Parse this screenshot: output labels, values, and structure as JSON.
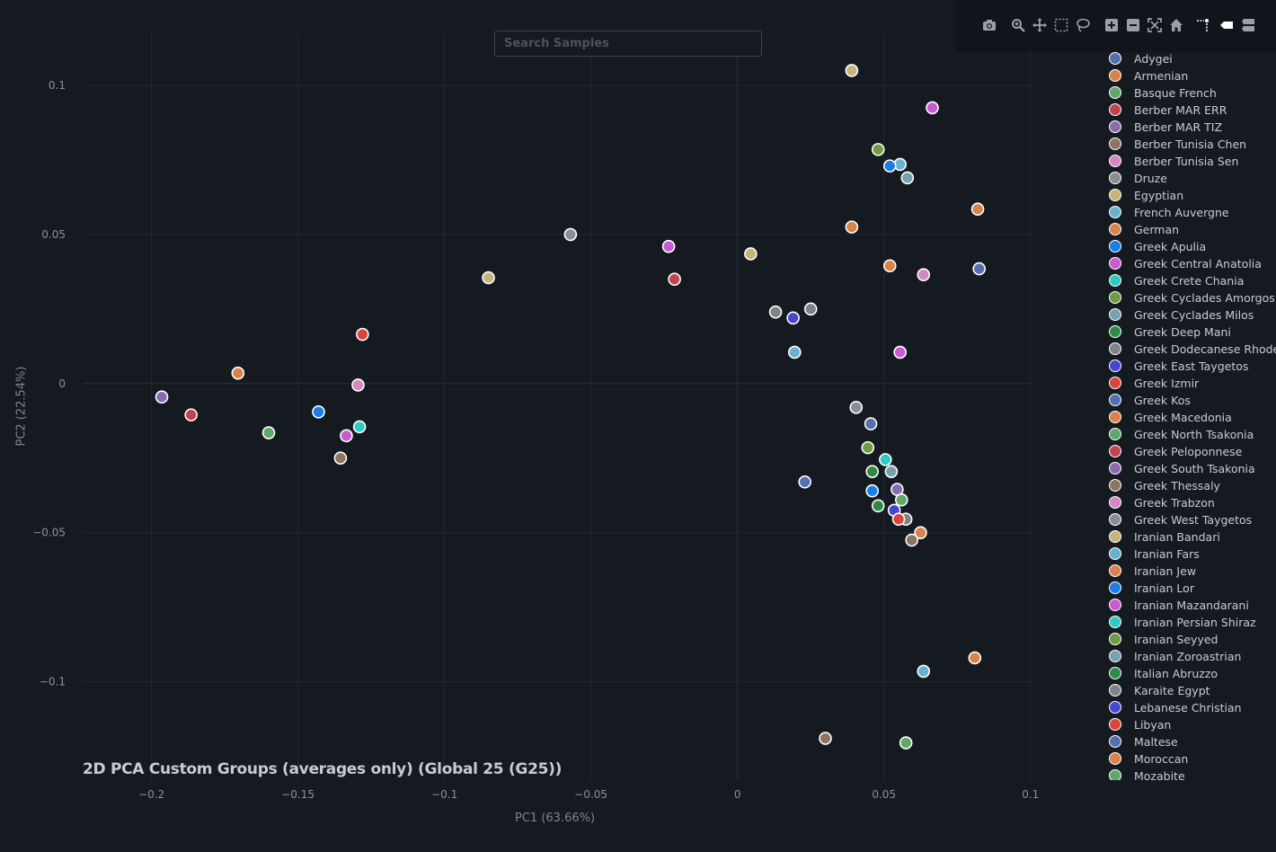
{
  "search": {
    "placeholder": "Search Samples"
  },
  "toolbar": {
    "buttons": [
      {
        "name": "camera-icon"
      },
      {
        "name": "zoom-icon"
      },
      {
        "name": "pan-icon"
      },
      {
        "name": "box-select-icon"
      },
      {
        "name": "lasso-select-icon"
      },
      {
        "name": "zoom-in-icon"
      },
      {
        "name": "zoom-out-icon"
      },
      {
        "name": "autoscale-icon"
      },
      {
        "name": "home-icon"
      },
      {
        "name": "spike-lines-icon"
      },
      {
        "name": "hover-closest-icon"
      },
      {
        "name": "hover-compare-icon"
      }
    ]
  },
  "chart_data": {
    "type": "scatter",
    "title": "2D PCA Custom Groups (averages only) (Global 25 (G25))",
    "xlabel": "PC1 (63.66%)",
    "ylabel": "PC2 (22.54%)",
    "xlim": [
      -0.2235,
      0.101
    ],
    "ylim": [
      -0.133,
      0.1175
    ],
    "xticks": [
      {
        "v": -0.2,
        "label": "−0.2"
      },
      {
        "v": -0.15,
        "label": "−0.15"
      },
      {
        "v": -0.1,
        "label": "−0.1"
      },
      {
        "v": -0.05,
        "label": "−0.05"
      },
      {
        "v": 0,
        "label": "0"
      },
      {
        "v": 0.05,
        "label": "0.05"
      },
      {
        "v": 0.1,
        "label": "0.1"
      }
    ],
    "yticks": [
      {
        "v": 0.1,
        "label": "0.1"
      },
      {
        "v": 0.05,
        "label": "0.05"
      },
      {
        "v": 0,
        "label": "0"
      },
      {
        "v": -0.05,
        "label": "−0.05"
      },
      {
        "v": -0.1,
        "label": "−0.1"
      }
    ],
    "grid": true,
    "legend_position": "right",
    "series": [
      {
        "name": "Adygei",
        "color": "#5470b0",
        "points": [
          [
            0.0825,
            0.0385
          ]
        ]
      },
      {
        "name": "Armenian",
        "color": "#d8834c",
        "points": [
          [
            0.052,
            0.0395
          ]
        ]
      },
      {
        "name": "Basque French",
        "color": "#5ea86a",
        "points": [
          [
            0.0575,
            -0.1205
          ]
        ]
      },
      {
        "name": "Berber MAR ERR",
        "color": "#c1454f",
        "points": [
          [
            -0.0215,
            0.035
          ]
        ]
      },
      {
        "name": "Berber MAR TIZ",
        "color": "#8a6bb0",
        "points": [
          [
            0.0545,
            -0.0355
          ]
        ]
      },
      {
        "name": "Berber Tunisia Chen",
        "color": "#8c7463",
        "points": [
          [
            0.03,
            -0.119
          ]
        ]
      },
      {
        "name": "Berber Tunisia Sen",
        "color": "#d487c0",
        "points": [
          [
            0.0635,
            0.0365
          ]
        ]
      },
      {
        "name": "Druze",
        "color": "#8a8e94",
        "points": [
          [
            0.0405,
            -0.008
          ]
        ]
      },
      {
        "name": "Egyptian",
        "color": "#c6b47a",
        "points": [
          [
            0.0045,
            0.0435
          ]
        ]
      },
      {
        "name": "French Auvergne",
        "color": "#66b2cf",
        "points": [
          [
            0.0635,
            -0.0965
          ]
        ]
      },
      {
        "name": "German",
        "color": "#d8834c",
        "points": [
          [
            0.081,
            -0.092
          ]
        ]
      },
      {
        "name": "Greek Apulia",
        "color": "#1a7ee6",
        "points": [
          [
            0.046,
            -0.036
          ]
        ]
      },
      {
        "name": "Greek Central Anatolia",
        "color": "#c85ad2",
        "points": [
          [
            0.0665,
            0.0925
          ]
        ]
      },
      {
        "name": "Greek Crete Chania",
        "color": "#2fcac2",
        "points": [
          [
            0.0505,
            -0.0255
          ]
        ]
      },
      {
        "name": "Greek Cyclades Amorgos",
        "color": "#6f9b43",
        "points": [
          [
            0.0445,
            -0.0215
          ]
        ]
      },
      {
        "name": "Greek Cyclades Milos",
        "color": "#76a2ab",
        "points": [
          [
            0.0525,
            -0.0295
          ]
        ]
      },
      {
        "name": "Greek Deep Mani",
        "color": "#2f8a45",
        "points": [
          [
            0.046,
            -0.0295
          ]
        ]
      },
      {
        "name": "Greek Dodecanese Rhodes",
        "color": "#7f8286",
        "points": [
          [
            0.025,
            0.025
          ]
        ]
      },
      {
        "name": "Greek East Taygetos",
        "color": "#4646cf",
        "points": [
          [
            0.019,
            0.022
          ]
        ]
      },
      {
        "name": "Greek Izmir",
        "color": "#d9443c",
        "points": [
          [
            -0.128,
            0.0165
          ]
        ]
      },
      {
        "name": "Greek Kos",
        "color": "#5470b0",
        "points": [
          [
            0.0455,
            -0.0135
          ]
        ]
      },
      {
        "name": "Greek Macedonia",
        "color": "#d8834c",
        "points": [
          [
            -0.1705,
            0.0035
          ]
        ]
      },
      {
        "name": "Greek North Tsakonia",
        "color": "#5ea86a",
        "points": [
          [
            -0.16,
            -0.0165
          ]
        ]
      },
      {
        "name": "Greek Peloponnese",
        "color": "#c1454f",
        "points": [
          [
            -0.1865,
            -0.0105
          ]
        ]
      },
      {
        "name": "Greek South Tsakonia",
        "color": "#8a6bb0",
        "points": [
          [
            -0.1965,
            -0.0045
          ]
        ]
      },
      {
        "name": "Greek Thessaly",
        "color": "#8c7463",
        "points": [
          [
            -0.1355,
            -0.025
          ]
        ]
      },
      {
        "name": "Greek Trabzon",
        "color": "#d487c0",
        "points": [
          [
            -0.1295,
            -0.0005
          ]
        ]
      },
      {
        "name": "Greek West Taygetos",
        "color": "#8a8e94",
        "points": [
          [
            -0.057,
            0.05
          ]
        ]
      },
      {
        "name": "Iranian Bandari",
        "color": "#c6b47a",
        "points": [
          [
            -0.085,
            0.0355
          ]
        ]
      },
      {
        "name": "Iranian Fars",
        "color": "#66b2cf",
        "points": [
          [
            0.0195,
            0.0105
          ]
        ]
      },
      {
        "name": "Iranian Jew",
        "color": "#d8834c",
        "points": [
          [
            0.039,
            0.0525
          ]
        ]
      },
      {
        "name": "Iranian Lor",
        "color": "#1a7ee6",
        "points": [
          [
            -0.143,
            -0.0095
          ]
        ]
      },
      {
        "name": "Iranian Mazandarani",
        "color": "#c85ad2",
        "points": [
          [
            -0.1335,
            -0.0175
          ]
        ]
      },
      {
        "name": "Iranian Persian Shiraz",
        "color": "#2fcac2",
        "points": [
          [
            -0.129,
            -0.0145
          ]
        ]
      },
      {
        "name": "Iranian Seyyed",
        "color": "#6f9b43",
        "points": [
          [
            0.048,
            0.0785
          ]
        ]
      },
      {
        "name": "Iranian Zoroastrian",
        "color": "#76a2ab",
        "points": [
          [
            0.058,
            0.069
          ]
        ]
      },
      {
        "name": "Italian Abruzzo",
        "color": "#2f8a45",
        "points": [
          [
            0.048,
            -0.041
          ]
        ]
      },
      {
        "name": "Karaite Egypt",
        "color": "#7f8286",
        "points": [
          [
            0.0575,
            -0.0455
          ]
        ]
      },
      {
        "name": "Lebanese Christian",
        "color": "#4646cf",
        "points": [
          [
            0.0535,
            -0.0425
          ]
        ]
      },
      {
        "name": "Libyan",
        "color": "#d9443c",
        "points": [
          [
            0.055,
            -0.0455
          ]
        ]
      },
      {
        "name": "Maltese",
        "color": "#5470b0",
        "points": [
          [
            0.023,
            -0.033
          ]
        ]
      },
      {
        "name": "Moroccan",
        "color": "#d8834c",
        "points": [
          [
            0.0625,
            -0.05
          ]
        ]
      },
      {
        "name": "Mozabite",
        "color": "#5ea86a",
        "points": [
          [
            0.056,
            -0.039
          ]
        ]
      },
      {
        "name": "",
        "color": "#c6b47a",
        "points": [
          [
            0.039,
            0.105
          ]
        ]
      },
      {
        "name": "",
        "color": "#66b2cf",
        "points": [
          [
            0.0555,
            0.0735
          ]
        ]
      },
      {
        "name": "",
        "color": "#1a7ee6",
        "points": [
          [
            0.052,
            0.073
          ]
        ]
      },
      {
        "name": "",
        "color": "#d8834c",
        "points": [
          [
            0.082,
            0.0585
          ]
        ]
      },
      {
        "name": "",
        "color": "#c85ad2",
        "points": [
          [
            -0.0235,
            0.046
          ]
        ]
      },
      {
        "name": "",
        "color": "#7f8286",
        "points": [
          [
            0.013,
            0.024
          ]
        ]
      },
      {
        "name": "",
        "color": "#c85ad2",
        "points": [
          [
            0.0555,
            0.0105
          ]
        ]
      },
      {
        "name": "",
        "color": "#8c7463",
        "points": [
          [
            0.0595,
            -0.0525
          ]
        ]
      }
    ]
  }
}
